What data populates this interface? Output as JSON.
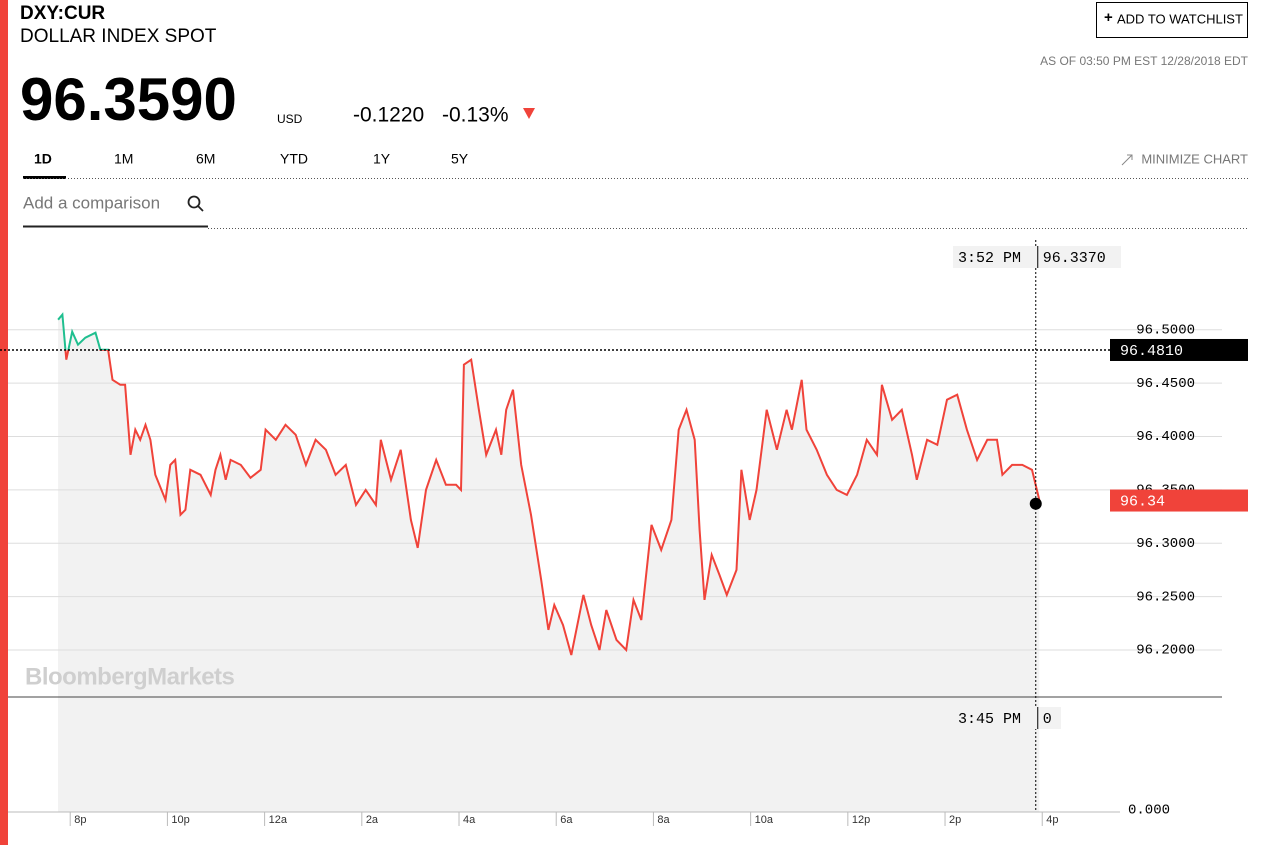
{
  "header": {
    "symbol": "DXY:CUR",
    "name": "DOLLAR INDEX SPOT",
    "price": "96.3590",
    "currency": "USD",
    "change": "-0.1220",
    "change_pct": "-0.13%",
    "as_of": "AS OF 03:50 PM EST 12/28/2018 EDT",
    "watchlist_button": "ADD TO WATCHLIST"
  },
  "tabs": [
    "1D",
    "1M",
    "6M",
    "YTD",
    "1Y",
    "5Y"
  ],
  "minimize": "MINIMIZE CHART",
  "comparison_placeholder": "Add a comparison",
  "watermark": "BloombergMarkets",
  "chart_data": {
    "type": "line",
    "color": "#f0433a",
    "above_color": "#1fbf8f",
    "x": [
      19.75,
      19.84,
      19.92,
      20.04,
      20.16,
      20.31,
      20.52,
      20.62,
      20.78,
      20.87,
      21.03,
      21.13,
      21.24,
      21.34,
      21.44,
      21.55,
      21.65,
      21.75,
      21.96,
      22.06,
      22.16,
      22.27,
      22.37,
      22.47,
      22.68,
      22.89,
      22.99,
      23.09,
      23.2,
      23.3,
      23.51,
      23.71,
      23.92,
      24.02,
      24.23,
      24.43,
      24.64,
      24.85,
      25.05,
      25.26,
      25.46,
      25.67,
      25.88,
      26.08,
      26.29,
      26.39,
      26.6,
      26.8,
      27.01,
      27.15,
      27.32,
      27.53,
      27.73,
      27.94,
      28.04,
      28.1,
      28.25,
      28.41,
      28.56,
      28.76,
      28.87,
      28.97,
      29.11,
      29.28,
      29.48,
      29.69,
      29.84,
      29.96,
      30.14,
      30.31,
      30.56,
      30.72,
      30.89,
      31.03,
      31.24,
      31.44,
      31.59,
      31.75,
      31.96,
      32.16,
      32.37,
      32.52,
      32.68,
      32.85,
      32.95,
      33.05,
      33.2,
      33.36,
      33.51,
      33.71,
      33.81,
      33.98,
      34.12,
      34.33,
      34.54,
      34.74,
      34.85,
      35.05,
      35.15,
      35.36,
      35.57,
      35.77,
      35.98,
      36.19,
      36.39,
      36.6,
      36.7,
      36.91,
      37.11,
      37.32,
      37.42,
      37.63,
      37.84,
      38.04,
      38.25,
      38.45,
      38.66,
      38.87,
      39.07,
      39.18,
      39.38,
      39.59,
      39.79,
      39.94
    ],
    "values": [
      96.5094,
      96.5141,
      96.4719,
      96.4981,
      96.4859,
      96.4925,
      96.4972,
      96.4813,
      96.4813,
      96.4531,
      96.4484,
      96.4484,
      96.3828,
      96.4063,
      96.3969,
      96.4109,
      96.3969,
      96.3641,
      96.3406,
      96.3734,
      96.3781,
      96.3266,
      96.3313,
      96.3688,
      96.3641,
      96.3453,
      96.3688,
      96.3828,
      96.3594,
      96.3781,
      96.3734,
      96.3613,
      96.3688,
      96.4063,
      96.3969,
      96.4109,
      96.4016,
      96.3734,
      96.3969,
      96.3875,
      96.3641,
      96.3734,
      96.3359,
      96.35,
      96.3359,
      96.3969,
      96.3594,
      96.3875,
      96.3219,
      96.2956,
      96.35,
      96.3781,
      96.3547,
      96.3547,
      96.35,
      96.4672,
      96.4719,
      96.425,
      96.3828,
      96.4063,
      96.3828,
      96.425,
      96.4438,
      96.3734,
      96.3266,
      96.2656,
      96.2188,
      96.2422,
      96.2234,
      96.1953,
      96.2516,
      96.2234,
      96.2,
      96.2375,
      96.2094,
      96.2,
      96.2469,
      96.2281,
      96.3172,
      96.2938,
      96.3219,
      96.4063,
      96.425,
      96.3969,
      96.3125,
      96.2469,
      96.2891,
      96.2703,
      96.2516,
      96.275,
      96.3688,
      96.3219,
      96.35,
      96.425,
      96.3875,
      96.425,
      96.4063,
      96.4531,
      96.4063,
      96.3875,
      96.3641,
      96.35,
      96.3453,
      96.3641,
      96.3969,
      96.3828,
      96.4484,
      96.4156,
      96.425,
      96.3828,
      96.3594,
      96.3969,
      96.3922,
      96.4344,
      96.4391,
      96.4063,
      96.3781,
      96.3969,
      96.3969,
      96.3641,
      96.3734,
      96.3734,
      96.3688,
      96.3406
    ],
    "xlim": [
      18.72,
      41.6
    ],
    "ylim": [
      96.156,
      96.584
    ],
    "xticks": [
      {
        "value": 20,
        "label": "8p"
      },
      {
        "value": 22,
        "label": "10p"
      },
      {
        "value": 24,
        "label": "12a"
      },
      {
        "value": 26,
        "label": "2a"
      },
      {
        "value": 28,
        "label": "4a"
      },
      {
        "value": 30,
        "label": "6a"
      },
      {
        "value": 32,
        "label": "8a"
      },
      {
        "value": 34,
        "label": "10a"
      },
      {
        "value": 36,
        "label": "12p"
      },
      {
        "value": 38,
        "label": "2p"
      },
      {
        "value": 40,
        "label": "4p"
      }
    ],
    "yticks": [
      {
        "value": 96.2,
        "label": "96.2000"
      },
      {
        "value": 96.25,
        "label": "96.2500"
      },
      {
        "value": 96.3,
        "label": "96.3000"
      },
      {
        "value": 96.35,
        "label": "96.3500"
      },
      {
        "value": 96.4,
        "label": "96.4000"
      },
      {
        "value": 96.45,
        "label": "96.4500"
      },
      {
        "value": 96.5,
        "label": "96.5000"
      }
    ],
    "grid": true,
    "previous_close": {
      "value": 96.481,
      "label": "96.4810"
    },
    "last_price": {
      "value": 96.34,
      "label": "96.34"
    },
    "crosshair": {
      "time": {
        "value": 39.8667,
        "label": "3:52 PM"
      },
      "price": {
        "value": 96.337,
        "label": "96.3370"
      }
    },
    "volume_crosshair": {
      "time": "3:45 PM",
      "value": 0
    },
    "volume_yticks": [
      {
        "value": 0,
        "label": "0.000"
      }
    ]
  }
}
